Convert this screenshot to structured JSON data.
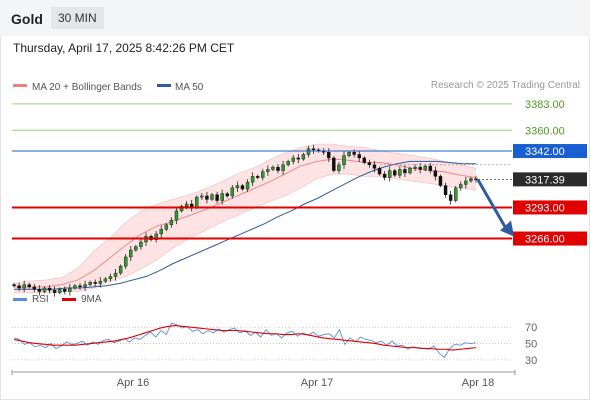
{
  "header": {
    "symbol": "Gold",
    "timeframe": "30 MIN"
  },
  "timestamp": "Thursday, April 17, 2025 8:42:26 PM CET",
  "source": "Research © 2025 Trading Central",
  "colors": {
    "bollinger": "#f08080",
    "ma50": "#2e5c9e",
    "resistance": "#9cd27a",
    "support": "#e00000",
    "pivot": "#1a5fd1",
    "rsi": "#5b8fd8",
    "rsi_ma": "#e00000"
  },
  "chart_data": [
    {
      "type": "candlestick",
      "title": "",
      "ylim": [
        3230,
        3395
      ],
      "legend": [
        {
          "name": "MA 20 + Bollinger Bands",
          "color": "#f08080"
        },
        {
          "name": "MA 50",
          "color": "#2e5c9e"
        }
      ],
      "x_labels": [
        "Apr 16",
        "Apr 17",
        "Apr 18"
      ],
      "levels": [
        {
          "value": 3383.0,
          "label": "3383.00",
          "kind": "resistance"
        },
        {
          "value": 3360.0,
          "label": "3360.00",
          "kind": "resistance"
        },
        {
          "value": 3342.0,
          "label": "3342.00",
          "kind": "pivot"
        },
        {
          "value": 3293.0,
          "label": "3293.00",
          "kind": "support"
        },
        {
          "value": 3266.0,
          "label": "3266.00",
          "kind": "support"
        }
      ],
      "last_price": {
        "value": 3317.39,
        "label": "3317.39"
      },
      "forecast": {
        "from": 3317,
        "to": 3266,
        "direction": "down"
      },
      "closes": [
        3225,
        3223,
        3226,
        3224,
        3222,
        3220,
        3223,
        3221,
        3219,
        3222,
        3220,
        3223,
        3225,
        3224,
        3226,
        3228,
        3227,
        3229,
        3231,
        3233,
        3236,
        3242,
        3250,
        3256,
        3259,
        3263,
        3268,
        3265,
        3270,
        3274,
        3278,
        3282,
        3290,
        3294,
        3296,
        3293,
        3302,
        3303,
        3300,
        3304,
        3299,
        3305,
        3303,
        3310,
        3312,
        3309,
        3315,
        3320,
        3319,
        3324,
        3326,
        3328,
        3325,
        3330,
        3333,
        3336,
        3335,
        3339,
        3344,
        3343,
        3342,
        3341,
        3336,
        3325,
        3330,
        3338,
        3341,
        3339,
        3336,
        3332,
        3330,
        3327,
        3322,
        3319,
        3325,
        3321,
        3326,
        3323,
        3327,
        3328,
        3326,
        3329,
        3325,
        3320,
        3312,
        3304,
        3299,
        3310,
        3313,
        3316,
        3318,
        3317
      ],
      "ma50": [
        3222,
        3222,
        3222,
        3222,
        3223,
        3223,
        3224,
        3225,
        3227,
        3230,
        3233,
        3238,
        3244,
        3249,
        3254,
        3259,
        3264,
        3269,
        3274,
        3279,
        3285,
        3290,
        3296,
        3301,
        3307,
        3313,
        3319,
        3324,
        3328,
        3331,
        3333,
        3333,
        3333,
        3332,
        3331,
        3331
      ],
      "bb_mid": [
        3224,
        3224,
        3224,
        3226,
        3230,
        3238,
        3249,
        3260,
        3270,
        3277,
        3281,
        3286,
        3291,
        3297,
        3303,
        3309,
        3315,
        3322,
        3329,
        3333,
        3335,
        3334,
        3332,
        3332,
        3330,
        3327,
        3325,
        3324,
        3321,
        3319
      ],
      "bb_upper": [
        3227,
        3229,
        3230,
        3232,
        3240,
        3255,
        3266,
        3280,
        3290,
        3296,
        3300,
        3304,
        3309,
        3315,
        3322,
        3327,
        3334,
        3340,
        3345,
        3348,
        3348,
        3346,
        3345,
        3342,
        3340,
        3338,
        3336,
        3333,
        3330,
        3327
      ],
      "bb_lower": [
        3219,
        3219,
        3219,
        3220,
        3220,
        3223,
        3229,
        3233,
        3240,
        3248,
        3258,
        3266,
        3273,
        3280,
        3286,
        3292,
        3298,
        3303,
        3310,
        3318,
        3322,
        3322,
        3320,
        3320,
        3318,
        3316,
        3314,
        3312,
        3310,
        3308
      ]
    },
    {
      "type": "line",
      "title": "",
      "ylim": [
        20,
        85
      ],
      "yticks": [
        70,
        50,
        30
      ],
      "legend": [
        {
          "name": "RSI",
          "color": "#5b8fd8"
        },
        {
          "name": "9MA",
          "color": "#e00000"
        }
      ],
      "series": [
        {
          "name": "RSI",
          "values": [
            57,
            55,
            49,
            51,
            46,
            48,
            45,
            50,
            44,
            47,
            52,
            49,
            50,
            53,
            48,
            52,
            49,
            54,
            55,
            51,
            53,
            56,
            52,
            57,
            55,
            60,
            64,
            58,
            66,
            61,
            75,
            73,
            69,
            71,
            65,
            67,
            62,
            66,
            63,
            68,
            64,
            67,
            69,
            63,
            66,
            60,
            64,
            58,
            67,
            60,
            62,
            57,
            63,
            65,
            59,
            63,
            60,
            64,
            59,
            61,
            62,
            57,
            67,
            49,
            57,
            52,
            58,
            55,
            54,
            51,
            53,
            48,
            53,
            47,
            48,
            43,
            46,
            45,
            44,
            43,
            47,
            38,
            33,
            44,
            49,
            48,
            51,
            50,
            51
          ]
        },
        {
          "name": "9MA",
          "values": [
            55,
            53,
            51,
            50,
            49,
            48,
            48,
            48,
            48,
            49,
            50,
            51,
            52,
            53,
            55,
            57,
            60,
            63,
            66,
            69,
            71,
            72,
            71,
            70,
            69,
            68,
            67,
            66,
            66,
            66,
            65,
            64,
            63,
            62,
            62,
            61,
            61,
            62,
            61,
            59,
            57,
            56,
            55,
            54,
            53,
            52,
            51,
            50,
            48,
            47,
            46,
            45,
            45,
            44,
            44,
            43,
            43,
            42,
            43,
            44,
            45
          ]
        }
      ]
    }
  ]
}
